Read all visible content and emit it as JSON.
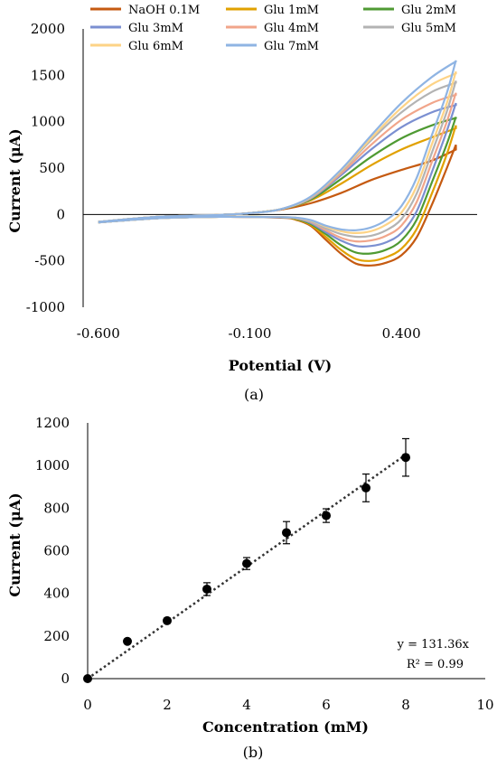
{
  "chart_data": [
    {
      "type": "line",
      "caption": "(a)",
      "xlabel": "Potential (V)",
      "ylabel": "Current (μA)",
      "xlim": [
        -0.65,
        0.65
      ],
      "ylim": [
        -1000,
        2000
      ],
      "x_ticks": [
        -0.6,
        -0.1,
        0.4
      ],
      "x_tick_labels": [
        "-0.600",
        "-0.100",
        "0.400"
      ],
      "y_ticks": [
        -1000,
        -500,
        0,
        500,
        1000,
        1500,
        2000
      ],
      "y_tick_labels": [
        "-1000",
        "-500",
        "0",
        "500",
        "1000",
        "1500",
        "2000"
      ],
      "grid": false,
      "legend_position": "top",
      "series": [
        {
          "name": "NaOH 0.1M",
          "color": "#c55a11",
          "forward": [
            [
              -0.6,
              -80
            ],
            [
              -0.4,
              -25
            ],
            [
              -0.2,
              -5
            ],
            [
              -0.1,
              15
            ],
            [
              0,
              50
            ],
            [
              0.1,
              120
            ],
            [
              0.2,
              230
            ],
            [
              0.3,
              370
            ],
            [
              0.4,
              480
            ],
            [
              0.5,
              580
            ],
            [
              0.58,
              700
            ]
          ],
          "reverse": [
            [
              0.58,
              750
            ],
            [
              0.55,
              500
            ],
            [
              0.5,
              100
            ],
            [
              0.45,
              -250
            ],
            [
              0.4,
              -440
            ],
            [
              0.35,
              -520
            ],
            [
              0.3,
              -550
            ],
            [
              0.25,
              -530
            ],
            [
              0.2,
              -420
            ],
            [
              0.15,
              -270
            ],
            [
              0.1,
              -120
            ],
            [
              0.05,
              -55
            ],
            [
              0,
              -35
            ],
            [
              -0.2,
              -25
            ],
            [
              -0.4,
              -40
            ],
            [
              -0.6,
              -85
            ]
          ]
        },
        {
          "name": "Glu 1mM",
          "color": "#e1a100",
          "forward": [
            [
              -0.6,
              -80
            ],
            [
              -0.4,
              -25
            ],
            [
              -0.2,
              -5
            ],
            [
              -0.1,
              15
            ],
            [
              0,
              55
            ],
            [
              0.1,
              150
            ],
            [
              0.2,
              330
            ],
            [
              0.3,
              530
            ],
            [
              0.4,
              700
            ],
            [
              0.5,
              830
            ],
            [
              0.58,
              930
            ]
          ],
          "reverse": [
            [
              0.58,
              960
            ],
            [
              0.55,
              650
            ],
            [
              0.5,
              220
            ],
            [
              0.45,
              -160
            ],
            [
              0.4,
              -370
            ],
            [
              0.35,
              -460
            ],
            [
              0.3,
              -500
            ],
            [
              0.25,
              -480
            ],
            [
              0.2,
              -380
            ],
            [
              0.15,
              -240
            ],
            [
              0.1,
              -110
            ],
            [
              0.05,
              -50
            ],
            [
              0,
              -30
            ],
            [
              -0.2,
              -25
            ],
            [
              -0.4,
              -40
            ],
            [
              -0.6,
              -85
            ]
          ]
        },
        {
          "name": "Glu 2mM",
          "color": "#4f9a33",
          "forward": [
            [
              -0.6,
              -80
            ],
            [
              -0.4,
              -25
            ],
            [
              -0.2,
              -5
            ],
            [
              -0.1,
              15
            ],
            [
              0,
              55
            ],
            [
              0.1,
              160
            ],
            [
              0.2,
              380
            ],
            [
              0.3,
              620
            ],
            [
              0.4,
              820
            ],
            [
              0.5,
              960
            ],
            [
              0.58,
              1040
            ]
          ],
          "reverse": [
            [
              0.58,
              1050
            ],
            [
              0.55,
              760
            ],
            [
              0.5,
              340
            ],
            [
              0.45,
              -60
            ],
            [
              0.4,
              -280
            ],
            [
              0.35,
              -380
            ],
            [
              0.3,
              -420
            ],
            [
              0.25,
              -410
            ],
            [
              0.2,
              -330
            ],
            [
              0.15,
              -210
            ],
            [
              0.1,
              -100
            ],
            [
              0.05,
              -45
            ],
            [
              0,
              -30
            ],
            [
              -0.2,
              -25
            ],
            [
              -0.4,
              -40
            ],
            [
              -0.6,
              -85
            ]
          ]
        },
        {
          "name": "Glu 3mM",
          "color": "#7b8fd1",
          "forward": [
            [
              -0.6,
              -80
            ],
            [
              -0.4,
              -25
            ],
            [
              -0.2,
              -5
            ],
            [
              -0.1,
              15
            ],
            [
              0,
              55
            ],
            [
              0.1,
              170
            ],
            [
              0.2,
              420
            ],
            [
              0.3,
              700
            ],
            [
              0.4,
              940
            ],
            [
              0.5,
              1100
            ],
            [
              0.58,
              1180
            ]
          ],
          "reverse": [
            [
              0.58,
              1200
            ],
            [
              0.55,
              900
            ],
            [
              0.5,
              450
            ],
            [
              0.45,
              30
            ],
            [
              0.4,
              -200
            ],
            [
              0.35,
              -300
            ],
            [
              0.3,
              -340
            ],
            [
              0.25,
              -340
            ],
            [
              0.2,
              -280
            ],
            [
              0.15,
              -190
            ],
            [
              0.1,
              -90
            ],
            [
              0.05,
              -40
            ],
            [
              0,
              -30
            ],
            [
              -0.2,
              -25
            ],
            [
              -0.4,
              -40
            ],
            [
              -0.6,
              -85
            ]
          ]
        },
        {
          "name": "Glu 4mM",
          "color": "#f1a58a",
          "forward": [
            [
              -0.6,
              -80
            ],
            [
              -0.4,
              -25
            ],
            [
              -0.2,
              -5
            ],
            [
              -0.1,
              15
            ],
            [
              0,
              55
            ],
            [
              0.1,
              175
            ],
            [
              0.2,
              440
            ],
            [
              0.3,
              750
            ],
            [
              0.4,
              1020
            ],
            [
              0.5,
              1200
            ],
            [
              0.58,
              1290
            ]
          ],
          "reverse": [
            [
              0.58,
              1310
            ],
            [
              0.55,
              1000
            ],
            [
              0.5,
              560
            ],
            [
              0.45,
              130
            ],
            [
              0.4,
              -120
            ],
            [
              0.35,
              -230
            ],
            [
              0.3,
              -280
            ],
            [
              0.25,
              -290
            ],
            [
              0.2,
              -250
            ],
            [
              0.15,
              -170
            ],
            [
              0.1,
              -80
            ],
            [
              0.05,
              -40
            ],
            [
              0,
              -30
            ],
            [
              -0.2,
              -25
            ],
            [
              -0.4,
              -40
            ],
            [
              -0.6,
              -85
            ]
          ]
        },
        {
          "name": "Glu 5mM",
          "color": "#b3b3b3",
          "forward": [
            [
              -0.6,
              -80
            ],
            [
              -0.4,
              -25
            ],
            [
              -0.2,
              -5
            ],
            [
              -0.1,
              15
            ],
            [
              0,
              55
            ],
            [
              0.1,
              180
            ],
            [
              0.2,
              460
            ],
            [
              0.3,
              800
            ],
            [
              0.4,
              1100
            ],
            [
              0.5,
              1320
            ],
            [
              0.58,
              1420
            ]
          ],
          "reverse": [
            [
              0.58,
              1440
            ],
            [
              0.55,
              1110
            ],
            [
              0.5,
              660
            ],
            [
              0.45,
              220
            ],
            [
              0.4,
              -50
            ],
            [
              0.35,
              -170
            ],
            [
              0.3,
              -230
            ],
            [
              0.25,
              -240
            ],
            [
              0.2,
              -210
            ],
            [
              0.15,
              -150
            ],
            [
              0.1,
              -75
            ],
            [
              0.05,
              -35
            ],
            [
              0,
              -30
            ],
            [
              -0.2,
              -25
            ],
            [
              -0.4,
              -40
            ],
            [
              -0.6,
              -85
            ]
          ]
        },
        {
          "name": "Glu 6mM",
          "color": "#fdd386",
          "forward": [
            [
              -0.6,
              -80
            ],
            [
              -0.4,
              -25
            ],
            [
              -0.2,
              -5
            ],
            [
              -0.1,
              15
            ],
            [
              0,
              55
            ],
            [
              0.1,
              185
            ],
            [
              0.2,
              470
            ],
            [
              0.3,
              820
            ],
            [
              0.4,
              1150
            ],
            [
              0.5,
              1400
            ],
            [
              0.58,
              1520
            ]
          ],
          "reverse": [
            [
              0.58,
              1540
            ],
            [
              0.55,
              1200
            ],
            [
              0.5,
              750
            ],
            [
              0.45,
              300
            ],
            [
              0.4,
              20
            ],
            [
              0.35,
              -110
            ],
            [
              0.3,
              -180
            ],
            [
              0.25,
              -200
            ],
            [
              0.2,
              -180
            ],
            [
              0.15,
              -130
            ],
            [
              0.1,
              -65
            ],
            [
              0.05,
              -35
            ],
            [
              0,
              -30
            ],
            [
              -0.2,
              -25
            ],
            [
              -0.4,
              -40
            ],
            [
              -0.6,
              -85
            ]
          ]
        },
        {
          "name": "Glu 7mM",
          "color": "#8fb4e3",
          "forward": [
            [
              -0.6,
              -80
            ],
            [
              -0.4,
              -25
            ],
            [
              -0.2,
              -5
            ],
            [
              -0.1,
              15
            ],
            [
              0,
              55
            ],
            [
              0.1,
              190
            ],
            [
              0.2,
              480
            ],
            [
              0.3,
              850
            ],
            [
              0.4,
              1200
            ],
            [
              0.5,
              1480
            ],
            [
              0.58,
              1650
            ]
          ],
          "reverse": [
            [
              0.58,
              1660
            ],
            [
              0.55,
              1310
            ],
            [
              0.5,
              850
            ],
            [
              0.45,
              390
            ],
            [
              0.4,
              90
            ],
            [
              0.35,
              -60
            ],
            [
              0.3,
              -140
            ],
            [
              0.25,
              -170
            ],
            [
              0.2,
              -160
            ],
            [
              0.15,
              -120
            ],
            [
              0.1,
              -60
            ],
            [
              0.05,
              -35
            ],
            [
              0,
              -30
            ],
            [
              -0.2,
              -25
            ],
            [
              -0.4,
              -40
            ],
            [
              -0.6,
              -85
            ]
          ]
        }
      ]
    },
    {
      "type": "scatter",
      "caption": "(b)",
      "xlabel": "Concentration (mM)",
      "ylabel": "Current (μA)",
      "xlim": [
        0,
        10
      ],
      "ylim": [
        0,
        1200
      ],
      "x_ticks": [
        0,
        2,
        4,
        6,
        8,
        10
      ],
      "x_tick_labels": [
        "0",
        "2",
        "4",
        "6",
        "8",
        "10"
      ],
      "y_ticks": [
        0,
        200,
        400,
        600,
        800,
        1000,
        1200
      ],
      "y_tick_labels": [
        "0",
        "200",
        "400",
        "600",
        "800",
        "1000",
        "1200"
      ],
      "grid": false,
      "points": [
        {
          "x": 0,
          "y": 0,
          "err": 0
        },
        {
          "x": 1,
          "y": 175,
          "err": 10
        },
        {
          "x": 2,
          "y": 272,
          "err": 12
        },
        {
          "x": 3,
          "y": 420,
          "err": 30
        },
        {
          "x": 4,
          "y": 540,
          "err": 28
        },
        {
          "x": 5,
          "y": 685,
          "err": 52
        },
        {
          "x": 6,
          "y": 765,
          "err": 32
        },
        {
          "x": 7,
          "y": 895,
          "err": 65
        },
        {
          "x": 8,
          "y": 1038,
          "err": 88
        }
      ],
      "trendline": {
        "slope": 131.36,
        "intercept": 0,
        "x_range": [
          0,
          8
        ]
      },
      "equation": "y = 131.36x",
      "r_squared": "R² = 0.99",
      "marker_color": "#000000"
    }
  ]
}
